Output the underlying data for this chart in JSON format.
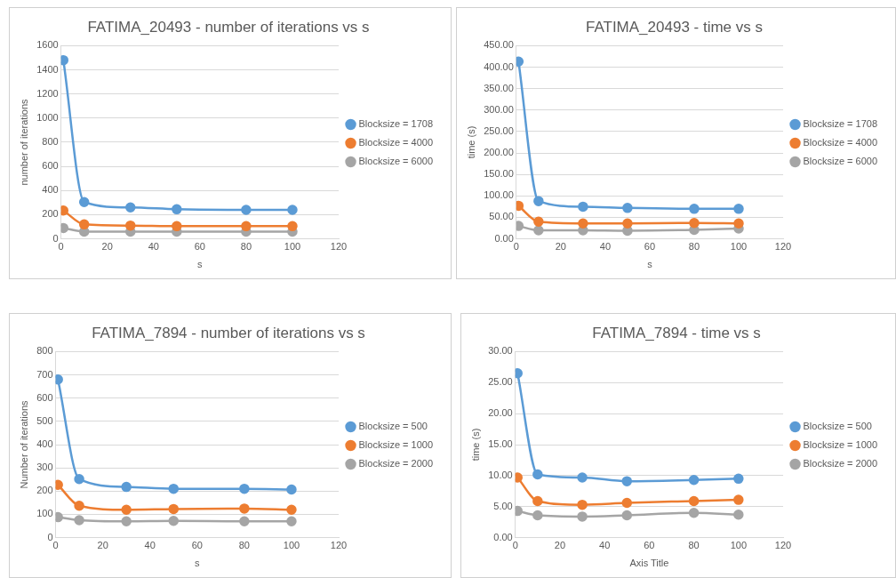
{
  "chart_data": [
    {
      "type": "line",
      "title": "FATIMA_20493 - number of iterations vs s",
      "xlabel": "s",
      "ylabel": "number of iterations",
      "x": [
        1,
        10,
        30,
        50,
        80,
        100
      ],
      "xlim": [
        0,
        120
      ],
      "xticks": [
        0,
        20,
        40,
        60,
        80,
        100,
        120
      ],
      "ylim": [
        0,
        1600
      ],
      "yticks": [
        0,
        200,
        400,
        600,
        800,
        1000,
        1200,
        1400,
        1600
      ],
      "grid": "y",
      "legend": "right",
      "marker": "circle",
      "series": [
        {
          "name": "Blocksize = 1708",
          "color": "#5b9bd5",
          "values": [
            1480,
            305,
            260,
            245,
            240,
            240
          ]
        },
        {
          "name": "Blocksize = 4000",
          "color": "#ed7d31",
          "values": [
            235,
            120,
            110,
            105,
            105,
            105
          ]
        },
        {
          "name": "Blocksize = 6000",
          "color": "#a5a5a5",
          "values": [
            90,
            60,
            60,
            60,
            60,
            60
          ]
        }
      ]
    },
    {
      "type": "line",
      "title": "FATIMA_20493 - time vs s",
      "xlabel": "s",
      "ylabel": "time (s)",
      "x": [
        1,
        10,
        30,
        50,
        80,
        100
      ],
      "xlim": [
        0,
        120
      ],
      "xticks": [
        0,
        20,
        40,
        60,
        80,
        100,
        120
      ],
      "ylim": [
        0,
        450
      ],
      "yticks": [
        {
          "value": 0,
          "label": "0.00"
        },
        {
          "value": 50,
          "label": "50.00"
        },
        {
          "value": 100,
          "label": "100.00"
        },
        {
          "value": 150,
          "label": "150.00"
        },
        {
          "value": 200,
          "label": "200.00"
        },
        {
          "value": 250,
          "label": "250.00"
        },
        {
          "value": 300,
          "label": "300.00"
        },
        {
          "value": 350,
          "label": "350.00"
        },
        {
          "value": 400,
          "label": "400.00"
        },
        {
          "value": 450,
          "label": "450.00"
        }
      ],
      "grid": "y",
      "legend": "right",
      "marker": "circle",
      "series": [
        {
          "name": "Blocksize = 1708",
          "color": "#5b9bd5",
          "values": [
            413,
            88,
            75,
            72,
            70,
            70
          ]
        },
        {
          "name": "Blocksize = 4000",
          "color": "#ed7d31",
          "values": [
            77,
            40,
            36,
            36,
            37,
            36
          ]
        },
        {
          "name": "Blocksize = 6000",
          "color": "#a5a5a5",
          "values": [
            30,
            20,
            20,
            19,
            21,
            24
          ]
        }
      ]
    },
    {
      "type": "line",
      "title": "FATIMA_7894 - number of iterations vs s",
      "xlabel": "s",
      "ylabel": "Number of iterations",
      "x": [
        1,
        10,
        30,
        50,
        80,
        100
      ],
      "xlim": [
        0,
        120
      ],
      "xticks": [
        0,
        20,
        40,
        60,
        80,
        100,
        120
      ],
      "ylim": [
        0,
        800
      ],
      "yticks": [
        0,
        100,
        200,
        300,
        400,
        500,
        600,
        700,
        800
      ],
      "grid": "y",
      "legend": "right",
      "marker": "circle",
      "series": [
        {
          "name": "Blocksize = 500",
          "color": "#5b9bd5",
          "values": [
            680,
            252,
            218,
            210,
            210,
            207
          ]
        },
        {
          "name": "Blocksize = 1000",
          "color": "#ed7d31",
          "values": [
            227,
            137,
            120,
            123,
            125,
            120
          ]
        },
        {
          "name": "Blocksize = 2000",
          "color": "#a5a5a5",
          "values": [
            88,
            75,
            70,
            72,
            70,
            70
          ]
        }
      ]
    },
    {
      "type": "line",
      "title": "FATIMA_7894 - time vs s",
      "xlabel": "Axis Title",
      "ylabel": "time (s)",
      "x": [
        1,
        10,
        30,
        50,
        80,
        100
      ],
      "xlim": [
        0,
        120
      ],
      "xticks": [
        0,
        20,
        40,
        60,
        80,
        100,
        120
      ],
      "ylim": [
        0,
        30
      ],
      "yticks": [
        {
          "value": 0,
          "label": "0.00"
        },
        {
          "value": 5,
          "label": "5.00"
        },
        {
          "value": 10,
          "label": "10.00"
        },
        {
          "value": 15,
          "label": "15.00"
        },
        {
          "value": 20,
          "label": "20.00"
        },
        {
          "value": 25,
          "label": "25.00"
        },
        {
          "value": 30,
          "label": "30.00"
        }
      ],
      "grid": "y",
      "legend": "right",
      "marker": "circle",
      "series": [
        {
          "name": "Blocksize = 500",
          "color": "#5b9bd5",
          "values": [
            26.5,
            10.2,
            9.7,
            9.1,
            9.3,
            9.5
          ]
        },
        {
          "name": "Blocksize = 1000",
          "color": "#ed7d31",
          "values": [
            9.7,
            5.9,
            5.3,
            5.6,
            5.9,
            6.1
          ]
        },
        {
          "name": "Blocksize = 2000",
          "color": "#a5a5a5",
          "values": [
            4.3,
            3.6,
            3.4,
            3.6,
            4.0,
            3.7
          ]
        }
      ]
    }
  ]
}
